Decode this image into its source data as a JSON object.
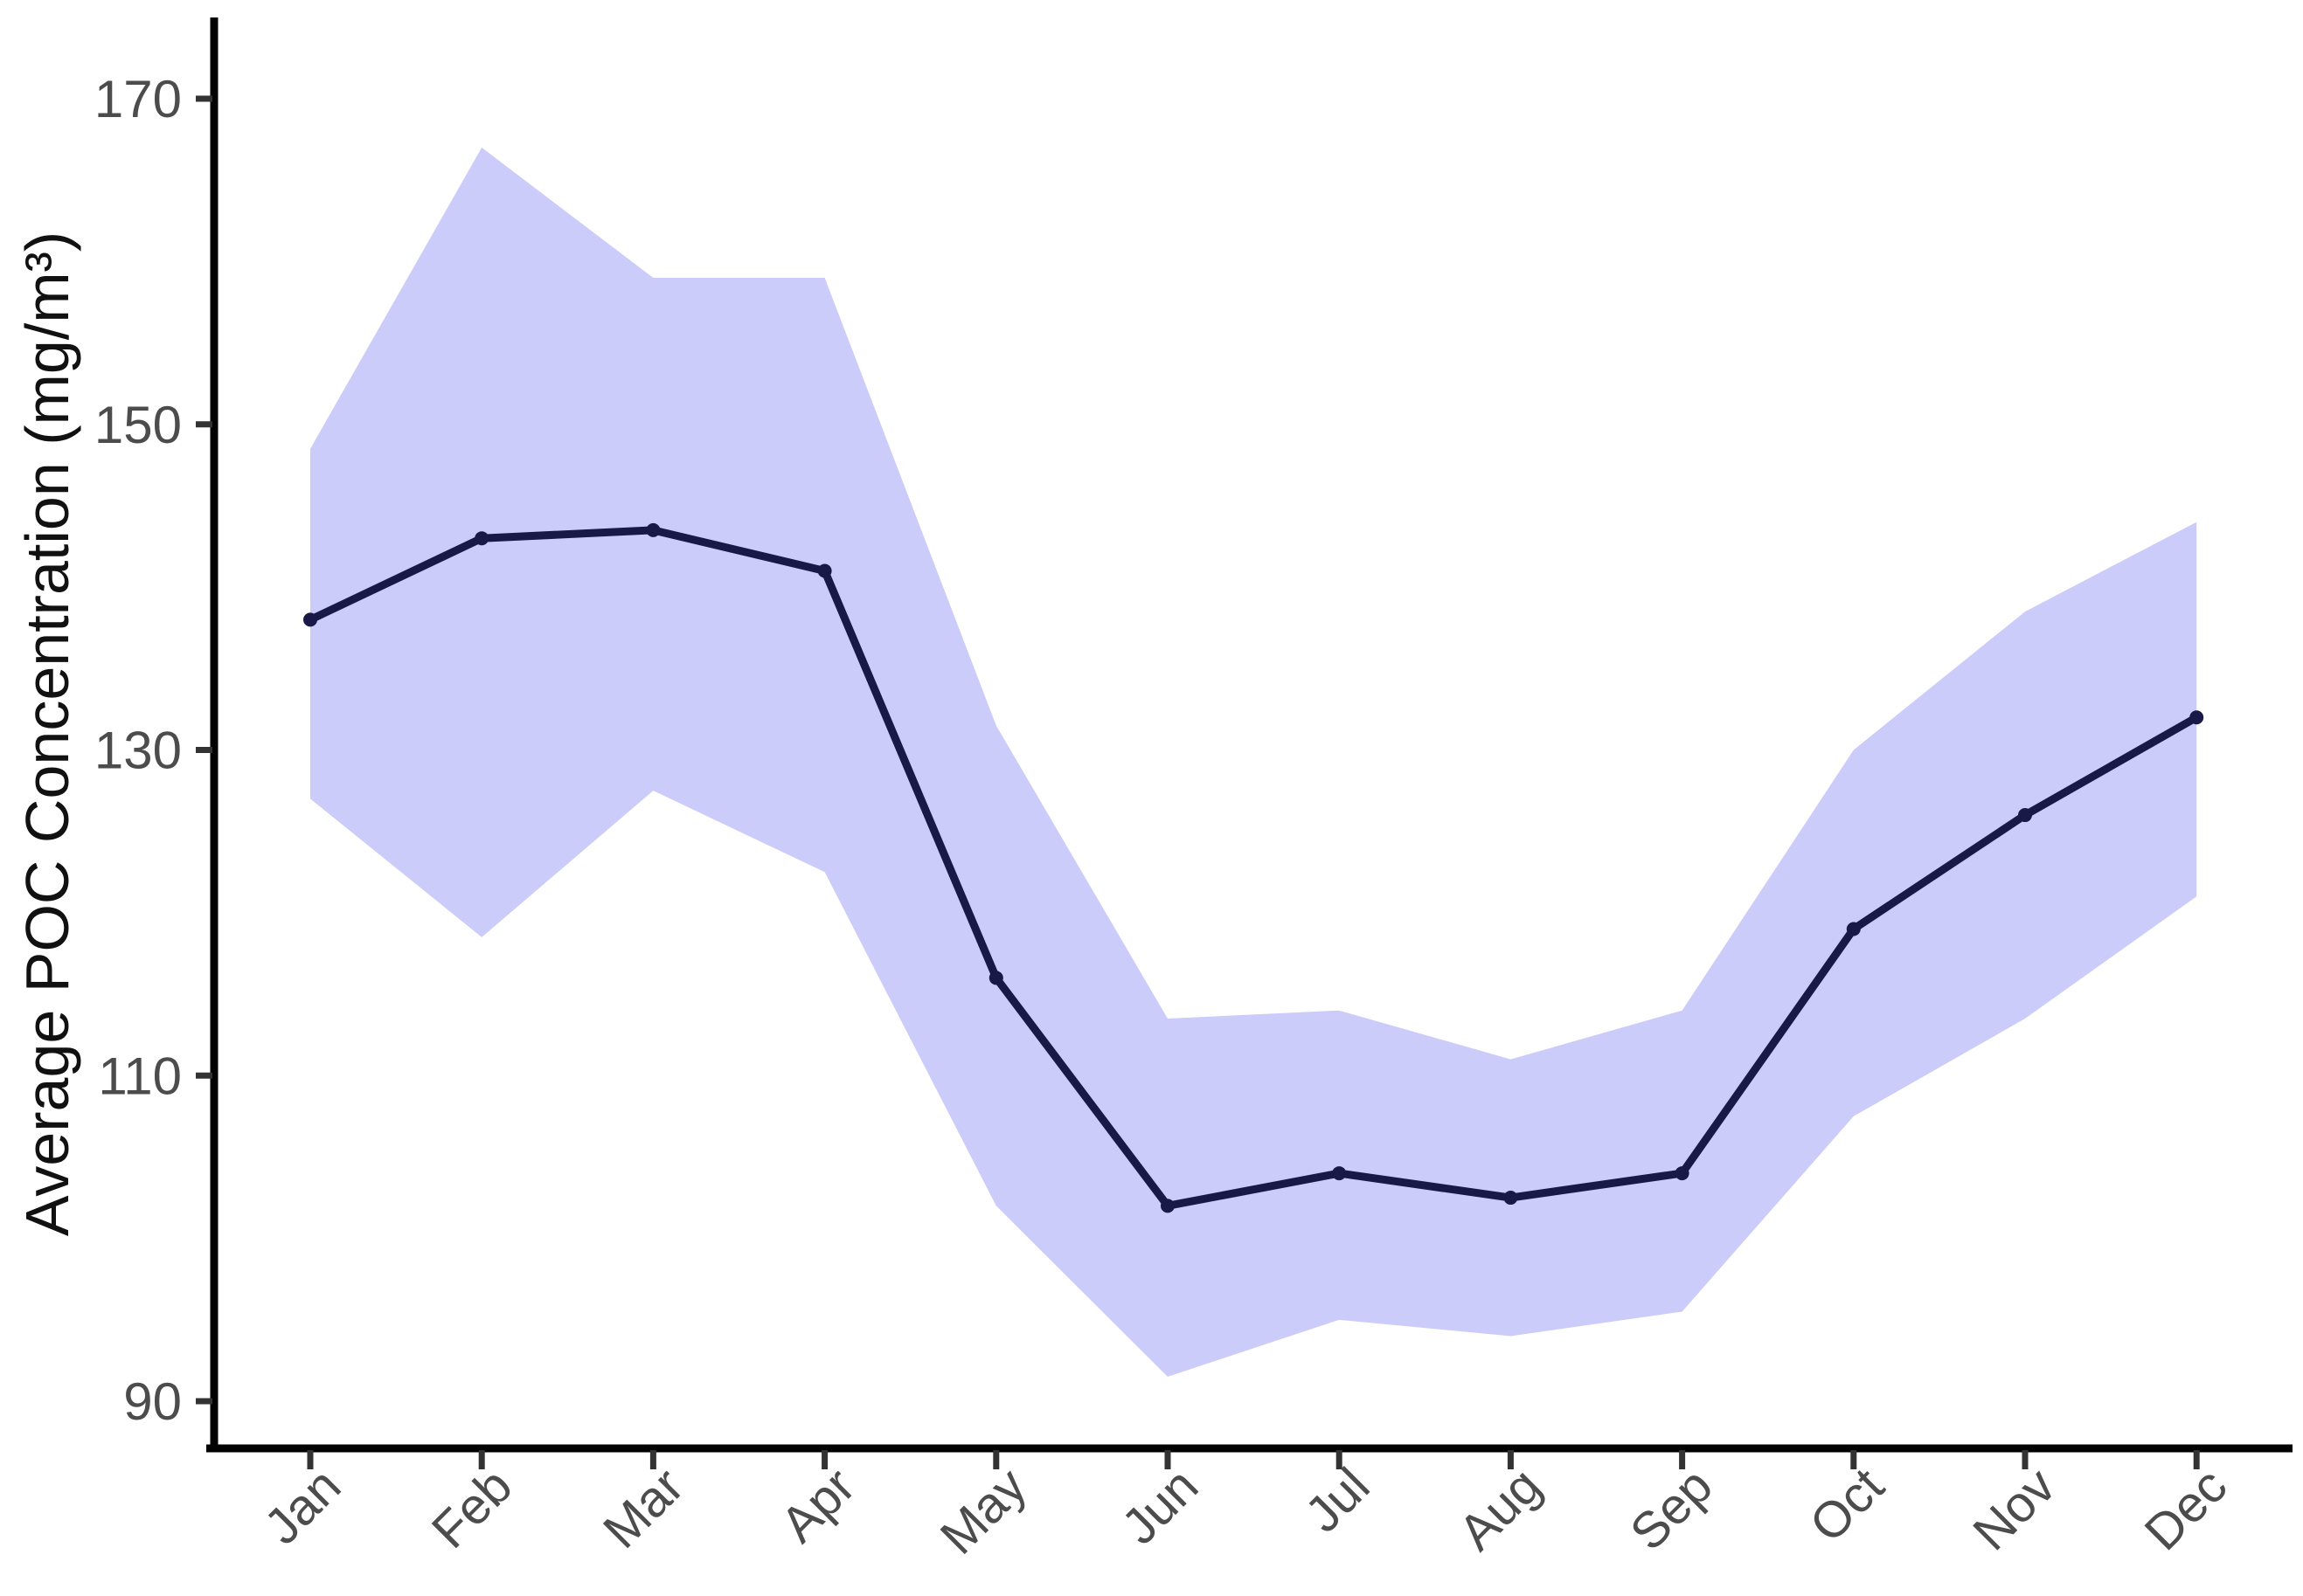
{
  "chart_data": {
    "type": "line",
    "title": "",
    "xlabel": "",
    "ylabel": "Average POC Concentration (mg/m³)",
    "categories": [
      "Jan",
      "Feb",
      "Mar",
      "Apr",
      "May",
      "Jun",
      "Jul",
      "Aug",
      "Sep",
      "Oct",
      "Nov",
      "Dec"
    ],
    "series": [
      {
        "name": "mean_poc",
        "values": [
          138,
          143,
          143.5,
          141,
          116,
          102,
          104,
          102.5,
          104,
          119,
          126,
          132
        ]
      },
      {
        "name": "ribbon_upper",
        "values": [
          148.5,
          167,
          159,
          159,
          131.5,
          113.5,
          114,
          111,
          114,
          130,
          138.5,
          144
        ]
      },
      {
        "name": "ribbon_lower",
        "values": [
          127,
          118.5,
          127.5,
          122.5,
          102,
          91.5,
          95,
          94,
          95.5,
          107.5,
          113.5,
          121
        ]
      }
    ],
    "yticks": [
      90,
      110,
      130,
      150,
      170
    ],
    "ylim": [
      87,
      175
    ],
    "grid": false,
    "legend": false,
    "markers": true,
    "ribbon": true,
    "colors": {
      "line": "#191947",
      "point": "#191947",
      "ribbon": "#ccccfa",
      "axis_line": "#000000",
      "tick_mark": "#333333",
      "tick_label": "#4c4c4c",
      "axis_title": "#111111",
      "background": "#ffffff"
    }
  }
}
